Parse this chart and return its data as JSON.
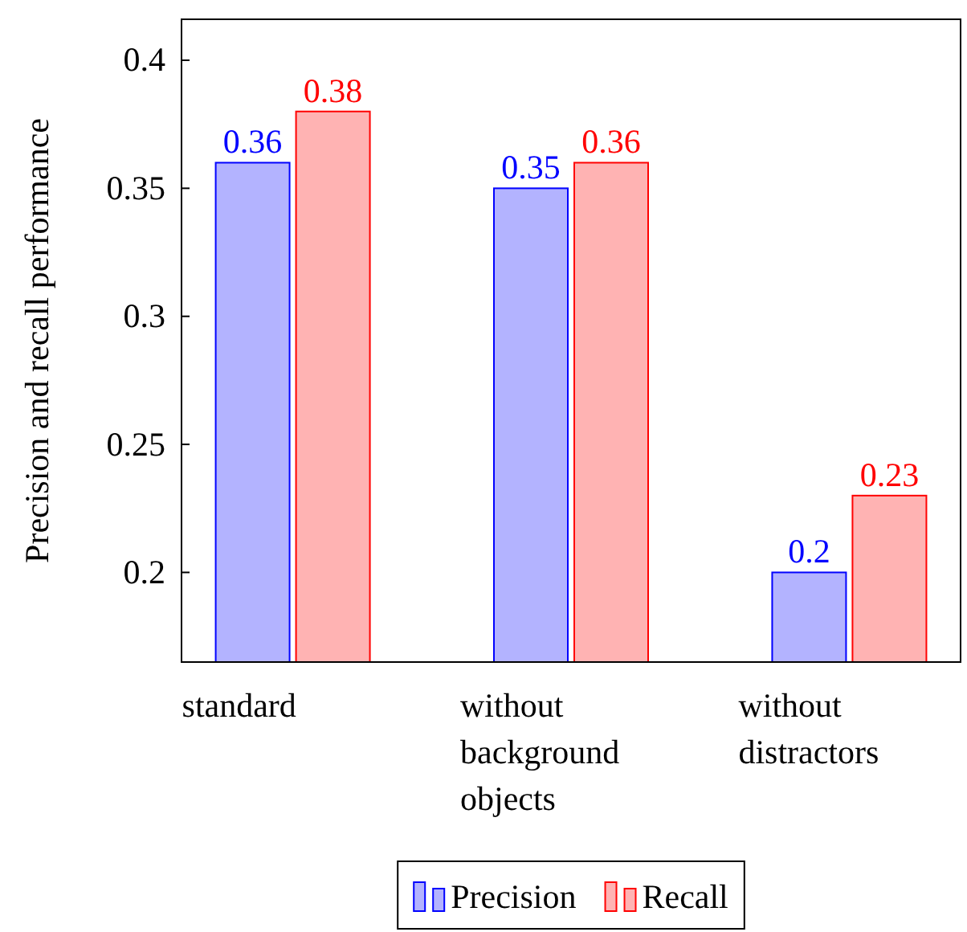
{
  "chart_data": {
    "type": "bar",
    "ylabel": "Precision and recall performance",
    "categories": [
      "standard",
      "without background objects",
      "without distractors"
    ],
    "series": [
      {
        "name": "Precision",
        "color": "#b3b3ff",
        "values": [
          0.36,
          0.35,
          0.2
        ]
      },
      {
        "name": "Recall",
        "color": "#ffb3b3",
        "values": [
          0.38,
          0.36,
          0.23
        ]
      }
    ],
    "ylim": [
      0.165,
      0.416
    ],
    "yticks": [
      0.2,
      0.25,
      0.3,
      0.35,
      0.4
    ],
    "data_labels": true,
    "grid": false,
    "legend": "bottom"
  }
}
